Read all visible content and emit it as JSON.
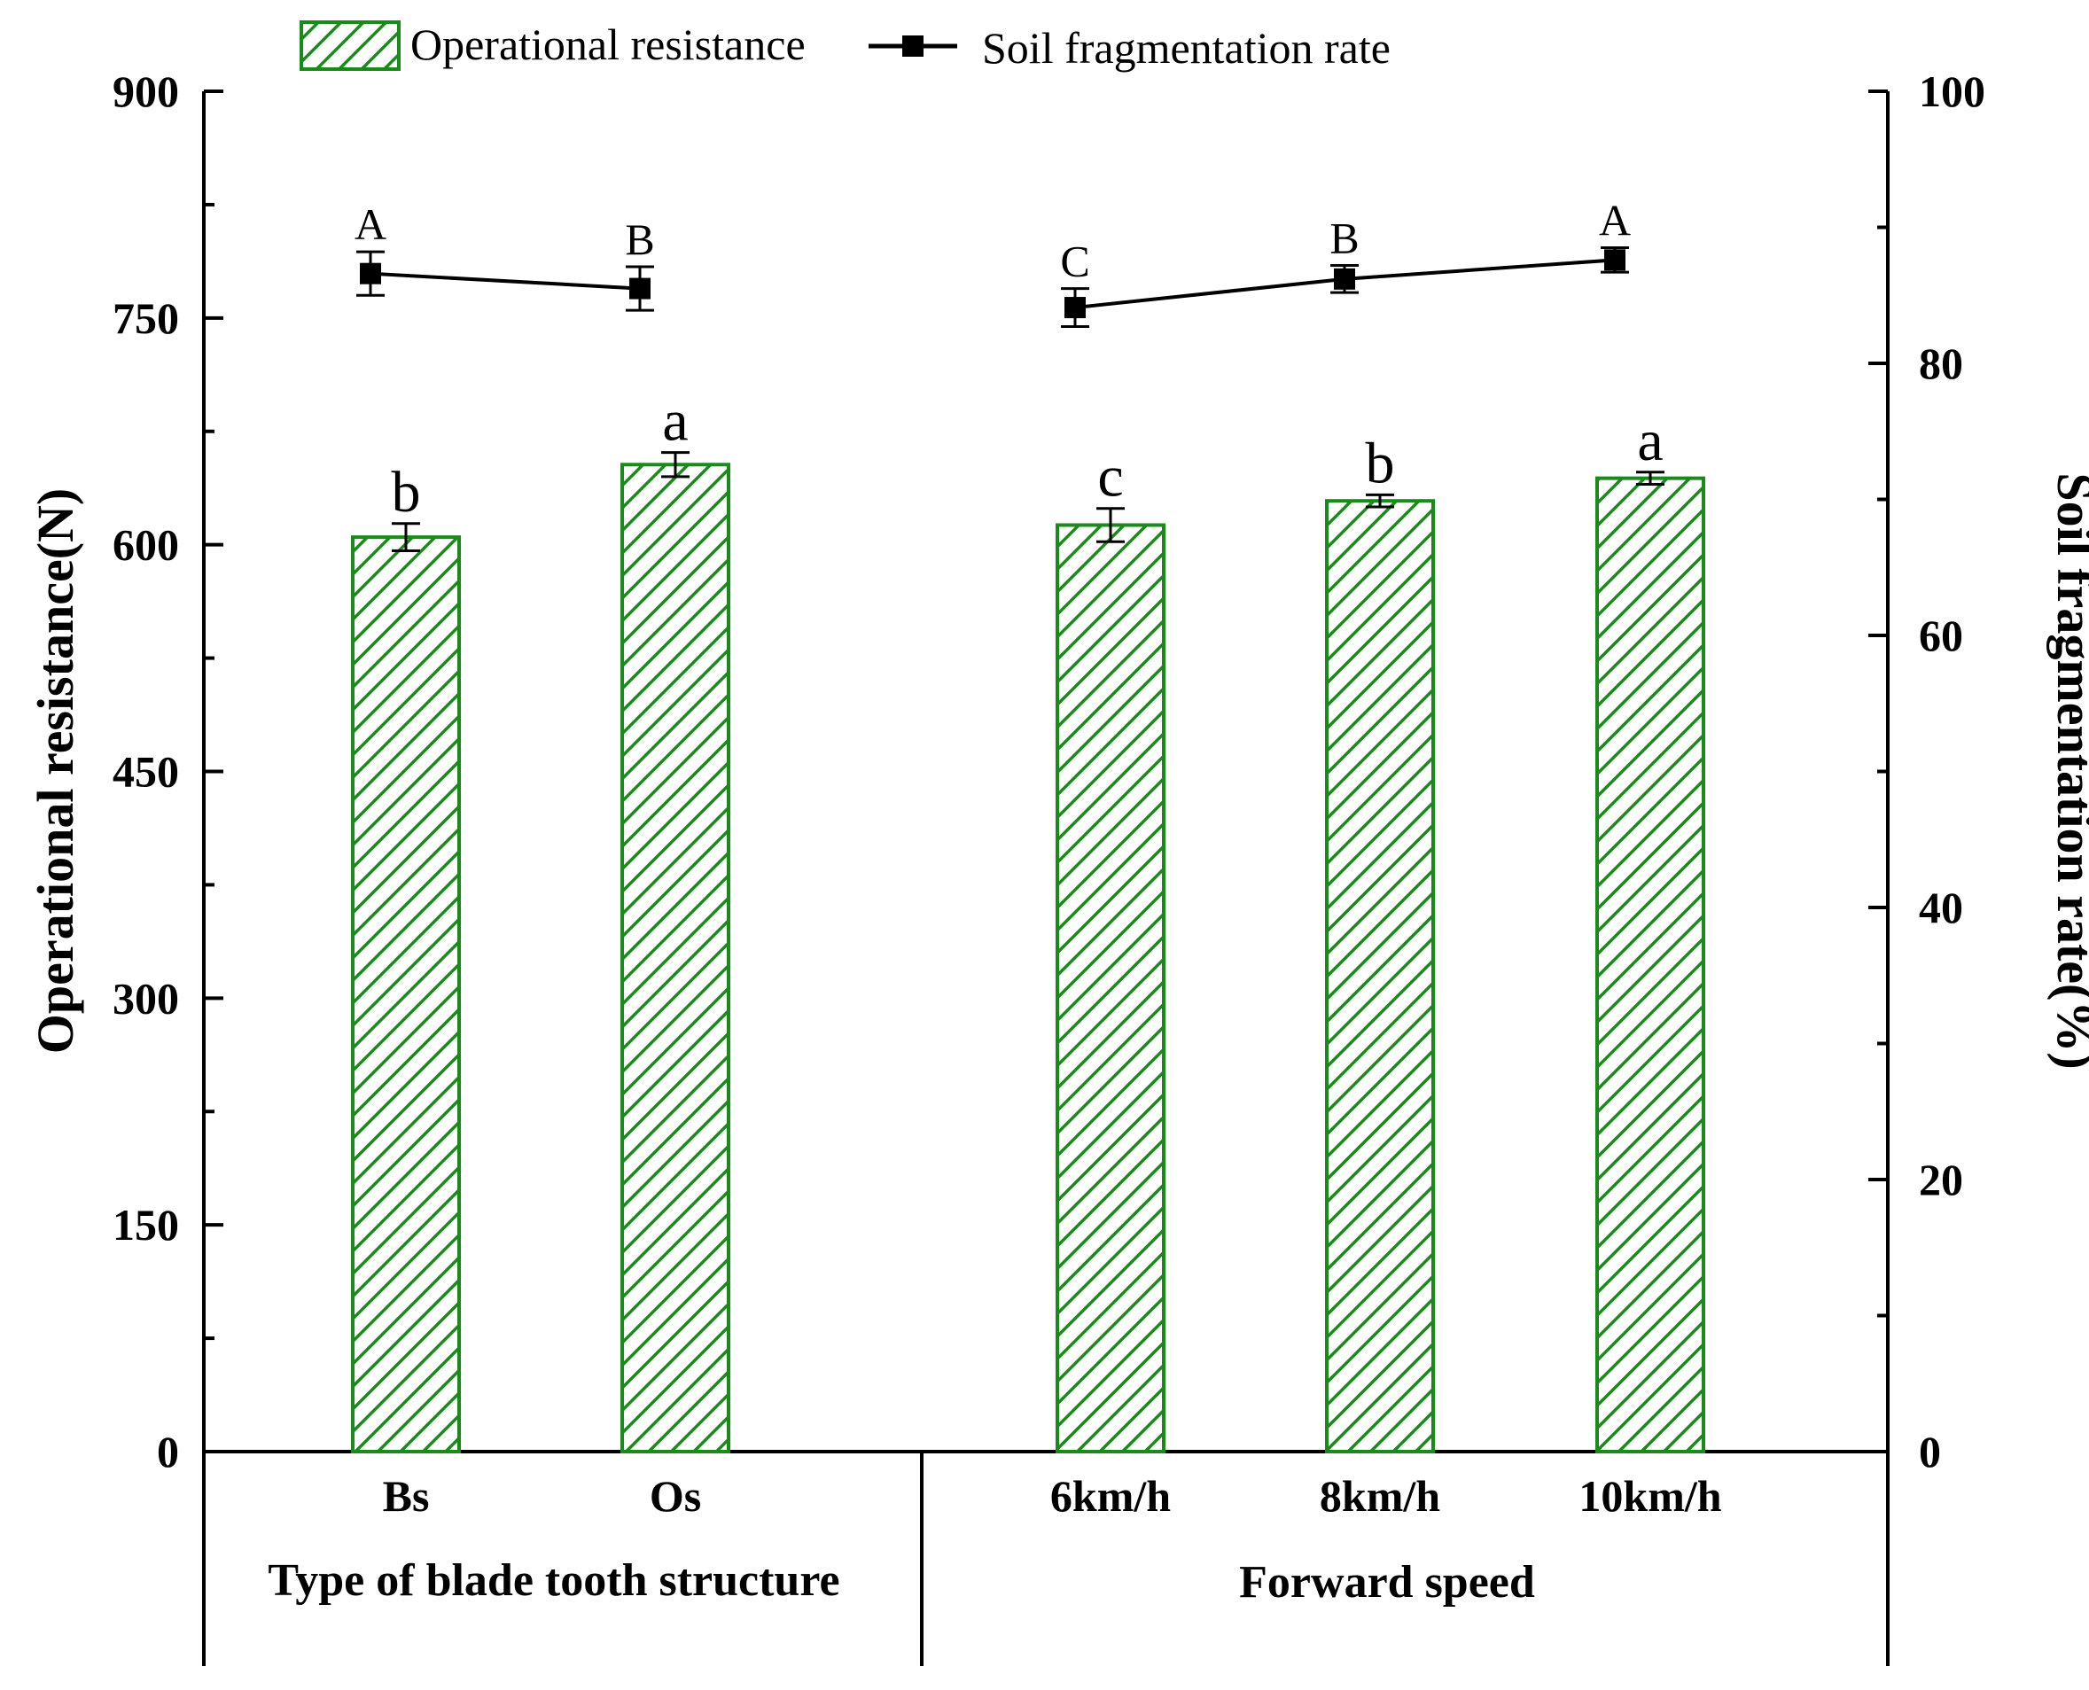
{
  "chart_data": {
    "type": "bar+line",
    "categories": [
      "Bs",
      "Os",
      "6km/h",
      "8km/h",
      "10km/h"
    ],
    "groups": [
      {
        "label": "Type of blade tooth structure",
        "categories": [
          "Bs",
          "Os"
        ]
      },
      {
        "label": "Forward speed",
        "categories": [
          "6km/h",
          "8km/h",
          "10km/h"
        ]
      }
    ],
    "series": [
      {
        "name": "Operational resistance",
        "kind": "bar",
        "axis": "left",
        "values": [
          605,
          653,
          613,
          629,
          644
        ],
        "errors": [
          9,
          8,
          11,
          4,
          4
        ],
        "significance": [
          "b",
          "a",
          "c",
          "b",
          "a"
        ]
      },
      {
        "name": "Soil fragmentation rate",
        "kind": "line",
        "axis": "right",
        "values": [
          86.6,
          85.5,
          84.1,
          86.2,
          87.6
        ],
        "errors": [
          1.6,
          1.6,
          1.4,
          1.0,
          0.9
        ],
        "significance": [
          "A",
          "B",
          "C",
          "B",
          "A"
        ]
      }
    ],
    "ylabel": "Operational resistance(N)",
    "y2label": "Soil fragmentation rate(%)",
    "ylim": [
      0,
      900
    ],
    "y2lim": [
      0,
      100
    ],
    "yticks": [
      0,
      150,
      300,
      450,
      600,
      750,
      900
    ],
    "y2ticks": [
      0,
      20,
      40,
      60,
      80,
      100
    ],
    "colors": {
      "bar": "#1a8a1a",
      "line": "#000000"
    },
    "legend_position": "top"
  }
}
